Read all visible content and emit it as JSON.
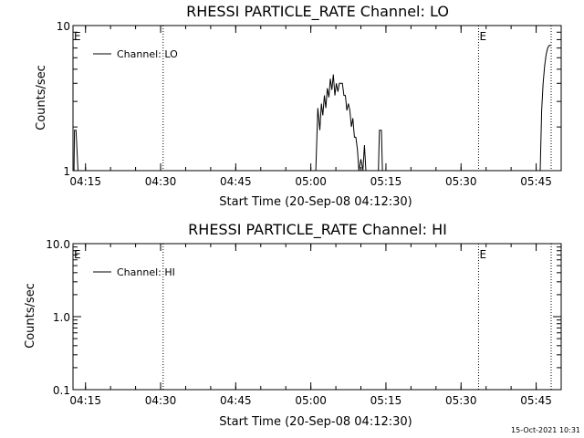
{
  "footer_timestamp": "15-Oct-2021 10:31",
  "chart_data": [
    {
      "type": "line",
      "title": "RHESSI PARTICLE_RATE Channel: LO",
      "xlabel": "Start Time (20-Sep-08 04:12:30)",
      "ylabel": "Counts/sec",
      "y_scale": "log",
      "ylim": [
        1,
        10
      ],
      "xlim_minutes": [
        0,
        97.5
      ],
      "x_tick_labels": [
        "04:15",
        "04:30",
        "04:45",
        "05:00",
        "05:15",
        "05:30",
        "05:45"
      ],
      "x_tick_minutes": [
        2.5,
        17.5,
        32.5,
        47.5,
        62.5,
        77.5,
        92.5
      ],
      "y_tick_labels": [
        "1",
        "10"
      ],
      "y_tick_values": [
        1,
        10
      ],
      "legend": [
        {
          "name": "Channel: LO",
          "position": "top-left"
        }
      ],
      "event_marker_minutes": [
        18,
        81,
        95.5
      ],
      "event_flag_label": "E",
      "event_flag_minutes": [
        0,
        81
      ],
      "series": [
        {
          "name": "Channel: LO",
          "segments": [
            {
              "minutes": [
                0.2,
                0.3,
                0.6,
                1.0,
                1.3
              ],
              "values": [
                1.0,
                1.9,
                1.9,
                1.0,
                1.0
              ]
            },
            {
              "minutes": [
                48.5,
                48.9,
                49.3,
                49.6,
                49.9,
                50.2,
                50.5,
                50.8,
                51.1,
                51.4,
                51.7,
                52.0,
                52.3,
                52.6,
                52.9,
                53.2,
                53.5,
                53.8,
                54.1,
                54.4,
                54.7,
                55.0,
                55.3,
                55.6,
                55.9,
                56.2,
                56.5,
                56.8,
                57.1,
                57.5,
                57.9,
                58.2,
                58.5
              ],
              "values": [
                1.0,
                2.7,
                1.9,
                2.9,
                2.4,
                3.3,
                2.7,
                3.7,
                3.2,
                4.3,
                3.6,
                4.6,
                3.3,
                4.0,
                3.5,
                4.0,
                4.0,
                4.0,
                3.3,
                3.3,
                2.6,
                2.9,
                2.6,
                2.0,
                2.3,
                1.7,
                1.7,
                1.4,
                1.0,
                1.2,
                1.0,
                1.5,
                1.0
              ]
            },
            {
              "minutes": [
                61.0,
                61.2,
                61.6,
                61.8
              ],
              "values": [
                1.0,
                1.9,
                1.9,
                1.0
              ]
            },
            {
              "minutes": [
                93.3,
                93.6,
                93.9,
                94.2,
                94.5,
                94.8,
                95.1,
                95.4
              ],
              "values": [
                1.0,
                2.6,
                4.0,
                5.3,
                6.3,
                7.0,
                7.3,
                7.3
              ]
            }
          ]
        }
      ]
    },
    {
      "type": "line",
      "title": "RHESSI PARTICLE_RATE Channel: HI",
      "xlabel": "Start Time (20-Sep-08 04:12:30)",
      "ylabel": "Counts/sec",
      "y_scale": "log",
      "ylim": [
        0.1,
        10
      ],
      "xlim_minutes": [
        0,
        97.5
      ],
      "x_tick_labels": [
        "04:15",
        "04:30",
        "04:45",
        "05:00",
        "05:15",
        "05:30",
        "05:45"
      ],
      "x_tick_minutes": [
        2.5,
        17.5,
        32.5,
        47.5,
        62.5,
        77.5,
        92.5
      ],
      "y_tick_labels": [
        "0.1",
        "1.0",
        "10.0"
      ],
      "y_tick_values": [
        0.1,
        1,
        10
      ],
      "legend": [
        {
          "name": "Channel: HI",
          "position": "top-left"
        }
      ],
      "event_marker_minutes": [
        18,
        81,
        95.5
      ],
      "event_flag_label": "E",
      "event_flag_minutes": [
        0,
        81
      ],
      "series": [
        {
          "name": "Channel: HI",
          "segments": []
        }
      ]
    }
  ]
}
